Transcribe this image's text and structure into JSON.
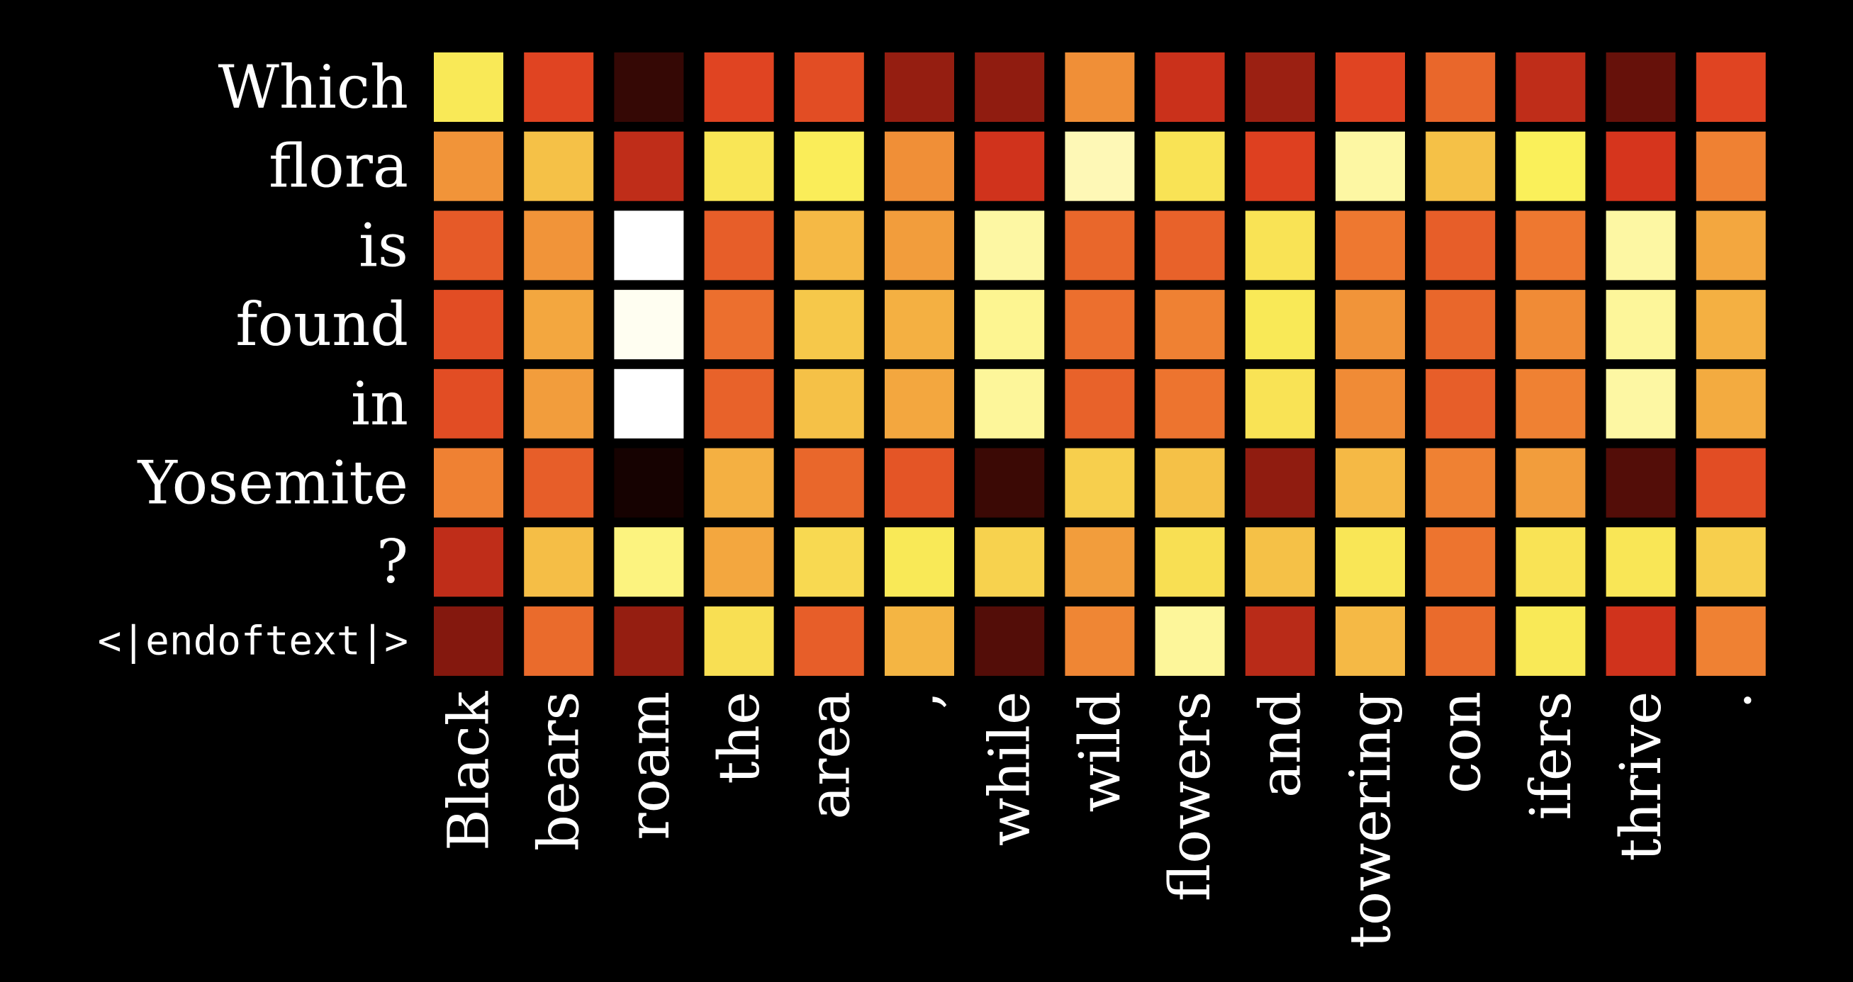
{
  "chart_data": {
    "type": "heatmap",
    "title": "",
    "xlabel": "",
    "ylabel": "",
    "rows": [
      "Which",
      "flora",
      "is",
      "found",
      "in",
      "Yosemite",
      "?",
      "<|endoftext|>"
    ],
    "columns": [
      "Black",
      "bears",
      "roam",
      "the",
      "area",
      ",",
      "while",
      "wild",
      "flowers",
      "and",
      "towering",
      "con",
      "ifers",
      "thrive",
      "."
    ],
    "colormap": "hot",
    "value_range": [
      0,
      1
    ],
    "values": [
      [
        0.78,
        0.38,
        0.07,
        0.38,
        0.4,
        0.23,
        0.22,
        0.55,
        0.32,
        0.24,
        0.38,
        0.46,
        0.3,
        0.15,
        0.38
      ],
      [
        0.56,
        0.66,
        0.3,
        0.77,
        0.79,
        0.55,
        0.33,
        0.9,
        0.76,
        0.37,
        0.88,
        0.66,
        0.8,
        0.34,
        0.52
      ],
      [
        0.43,
        0.56,
        1.0,
        0.44,
        0.64,
        0.58,
        0.88,
        0.46,
        0.45,
        0.76,
        0.5,
        0.44,
        0.5,
        0.88,
        0.6
      ],
      [
        0.4,
        0.6,
        0.98,
        0.48,
        0.68,
        0.62,
        0.86,
        0.48,
        0.52,
        0.78,
        0.56,
        0.46,
        0.54,
        0.87,
        0.62
      ],
      [
        0.4,
        0.58,
        1.0,
        0.45,
        0.66,
        0.6,
        0.87,
        0.45,
        0.49,
        0.76,
        0.54,
        0.44,
        0.52,
        0.88,
        0.61
      ],
      [
        0.52,
        0.44,
        0.02,
        0.62,
        0.46,
        0.42,
        0.08,
        0.7,
        0.66,
        0.22,
        0.64,
        0.52,
        0.58,
        0.12,
        0.4
      ],
      [
        0.3,
        0.65,
        0.84,
        0.6,
        0.73,
        0.78,
        0.71,
        0.58,
        0.75,
        0.66,
        0.77,
        0.49,
        0.76,
        0.77,
        0.7
      ],
      [
        0.2,
        0.47,
        0.23,
        0.75,
        0.44,
        0.63,
        0.12,
        0.53,
        0.87,
        0.29,
        0.64,
        0.47,
        0.78,
        0.33,
        0.52
      ]
    ]
  }
}
